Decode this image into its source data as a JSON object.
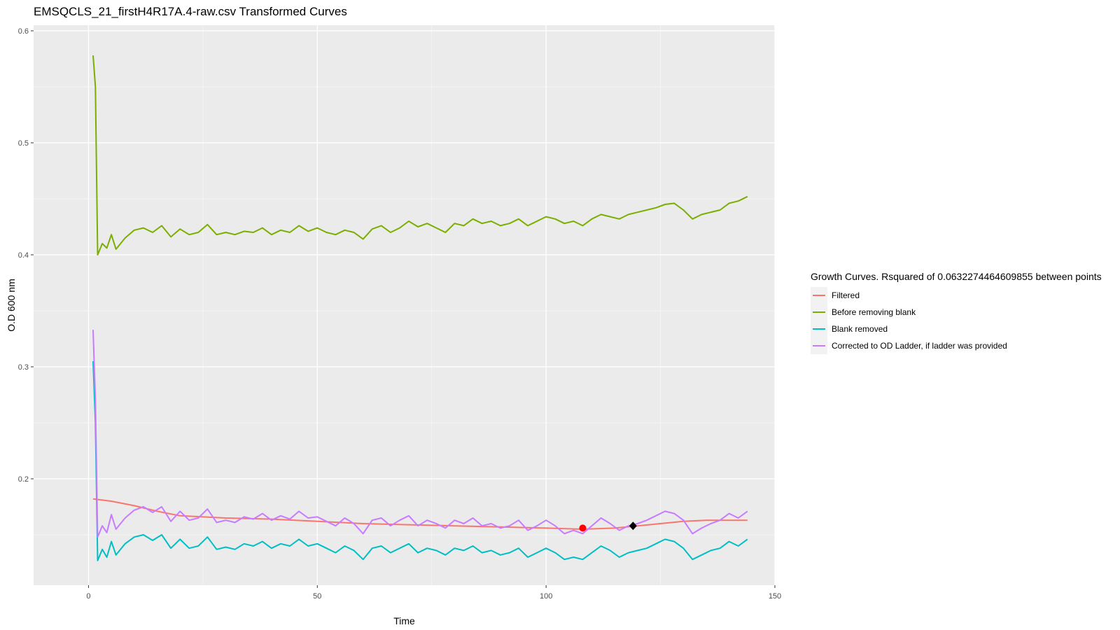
{
  "chart_data": {
    "type": "line",
    "title": "EMSQCLS_21_firstH4R17A.4-raw.csv Transformed Curves",
    "xlabel": "Time",
    "ylabel": "O.D 600 nm",
    "xlim": [
      -12,
      150
    ],
    "ylim": [
      0.105,
      0.605
    ],
    "x_ticks": [
      0,
      50,
      100,
      150
    ],
    "y_ticks": [
      0.2,
      0.3,
      0.4,
      0.5,
      0.6
    ],
    "x_tick_labels": [
      "0",
      "50",
      "100",
      "150"
    ],
    "y_tick_labels": [
      "0.2",
      "0.3",
      "0.4",
      "0.5",
      "0.6"
    ],
    "grid": true,
    "panel_background": "#ebebeb",
    "legend": {
      "title": "Growth Curves. Rsquared of 0.0632274464609855 between points",
      "placement": "right"
    },
    "series": [
      {
        "name": "Filtered",
        "color": "#f8766d",
        "x": [
          1,
          5,
          10,
          15,
          20,
          25,
          30,
          40,
          50,
          60,
          70,
          80,
          90,
          100,
          108,
          115,
          120,
          125,
          130,
          135,
          140,
          144
        ],
        "values": [
          0.182,
          0.18,
          0.176,
          0.171,
          0.167,
          0.166,
          0.165,
          0.164,
          0.162,
          0.16,
          0.159,
          0.158,
          0.157,
          0.156,
          0.155,
          0.156,
          0.158,
          0.16,
          0.162,
          0.163,
          0.163,
          0.163
        ]
      },
      {
        "name": "Before removing blank",
        "color": "#7cae00",
        "x": [
          1,
          1.5,
          2,
          3,
          4,
          5,
          6,
          8,
          10,
          12,
          14,
          16,
          18,
          20,
          22,
          24,
          26,
          28,
          30,
          32,
          34,
          36,
          38,
          40,
          42,
          44,
          46,
          48,
          50,
          52,
          54,
          56,
          58,
          60,
          62,
          64,
          66,
          68,
          70,
          72,
          74,
          76,
          78,
          80,
          82,
          84,
          86,
          88,
          90,
          92,
          94,
          96,
          98,
          100,
          102,
          104,
          106,
          108,
          110,
          112,
          114,
          116,
          118,
          120,
          122,
          124,
          126,
          128,
          130,
          132,
          134,
          136,
          138,
          140,
          142,
          144
        ],
        "values": [
          0.578,
          0.55,
          0.4,
          0.41,
          0.406,
          0.418,
          0.405,
          0.415,
          0.422,
          0.424,
          0.42,
          0.426,
          0.416,
          0.423,
          0.418,
          0.42,
          0.427,
          0.418,
          0.42,
          0.418,
          0.421,
          0.42,
          0.424,
          0.418,
          0.422,
          0.42,
          0.426,
          0.421,
          0.424,
          0.42,
          0.418,
          0.422,
          0.42,
          0.414,
          0.423,
          0.426,
          0.42,
          0.424,
          0.43,
          0.425,
          0.428,
          0.424,
          0.42,
          0.428,
          0.426,
          0.432,
          0.428,
          0.43,
          0.426,
          0.428,
          0.432,
          0.426,
          0.43,
          0.434,
          0.432,
          0.428,
          0.43,
          0.426,
          0.432,
          0.436,
          0.434,
          0.432,
          0.436,
          0.438,
          0.44,
          0.442,
          0.445,
          0.446,
          0.44,
          0.432,
          0.436,
          0.438,
          0.44,
          0.446,
          0.448,
          0.452
        ]
      },
      {
        "name": "Blank removed",
        "color": "#00bfc4",
        "x": [
          1,
          1.5,
          2,
          3,
          4,
          5,
          6,
          8,
          10,
          12,
          14,
          16,
          18,
          20,
          22,
          24,
          26,
          28,
          30,
          32,
          34,
          36,
          38,
          40,
          42,
          44,
          46,
          48,
          50,
          52,
          54,
          56,
          58,
          60,
          62,
          64,
          66,
          68,
          70,
          72,
          74,
          76,
          78,
          80,
          82,
          84,
          86,
          88,
          90,
          92,
          94,
          96,
          98,
          100,
          102,
          104,
          106,
          108,
          110,
          112,
          114,
          116,
          118,
          120,
          122,
          124,
          126,
          128,
          130,
          132,
          134,
          136,
          138,
          140,
          142,
          144
        ],
        "values": [
          0.305,
          0.25,
          0.127,
          0.137,
          0.13,
          0.144,
          0.132,
          0.142,
          0.148,
          0.15,
          0.145,
          0.15,
          0.138,
          0.146,
          0.138,
          0.14,
          0.148,
          0.137,
          0.139,
          0.137,
          0.142,
          0.14,
          0.144,
          0.138,
          0.142,
          0.14,
          0.146,
          0.14,
          0.142,
          0.138,
          0.134,
          0.14,
          0.136,
          0.128,
          0.138,
          0.14,
          0.134,
          0.138,
          0.142,
          0.134,
          0.138,
          0.136,
          0.132,
          0.138,
          0.136,
          0.14,
          0.134,
          0.136,
          0.132,
          0.134,
          0.138,
          0.13,
          0.134,
          0.138,
          0.134,
          0.128,
          0.13,
          0.128,
          0.134,
          0.14,
          0.136,
          0.13,
          0.134,
          0.136,
          0.138,
          0.142,
          0.146,
          0.144,
          0.138,
          0.128,
          0.132,
          0.136,
          0.138,
          0.144,
          0.14,
          0.146
        ]
      },
      {
        "name": "Corrected to OD Ladder, if ladder was provided",
        "color": "#c77cff",
        "x": [
          1,
          1.5,
          2,
          3,
          4,
          5,
          6,
          8,
          10,
          12,
          14,
          16,
          18,
          20,
          22,
          24,
          26,
          28,
          30,
          32,
          34,
          36,
          38,
          40,
          42,
          44,
          46,
          48,
          50,
          52,
          54,
          56,
          58,
          60,
          62,
          64,
          66,
          68,
          70,
          72,
          74,
          76,
          78,
          80,
          82,
          84,
          86,
          88,
          90,
          92,
          94,
          96,
          98,
          100,
          102,
          104,
          106,
          108,
          110,
          112,
          114,
          116,
          118,
          120,
          122,
          124,
          126,
          128,
          130,
          132,
          134,
          136,
          138,
          140,
          142,
          144
        ],
        "values": [
          0.333,
          0.27,
          0.148,
          0.158,
          0.152,
          0.168,
          0.155,
          0.165,
          0.172,
          0.175,
          0.17,
          0.175,
          0.162,
          0.171,
          0.163,
          0.165,
          0.173,
          0.161,
          0.163,
          0.161,
          0.166,
          0.164,
          0.169,
          0.163,
          0.167,
          0.164,
          0.171,
          0.165,
          0.166,
          0.162,
          0.158,
          0.165,
          0.16,
          0.151,
          0.163,
          0.165,
          0.158,
          0.163,
          0.167,
          0.158,
          0.163,
          0.16,
          0.156,
          0.163,
          0.16,
          0.165,
          0.158,
          0.16,
          0.156,
          0.158,
          0.163,
          0.154,
          0.158,
          0.163,
          0.158,
          0.151,
          0.154,
          0.151,
          0.158,
          0.165,
          0.16,
          0.154,
          0.158,
          0.16,
          0.163,
          0.167,
          0.171,
          0.169,
          0.163,
          0.151,
          0.156,
          0.16,
          0.163,
          0.169,
          0.165,
          0.171
        ]
      }
    ],
    "markers": [
      {
        "x": 108,
        "y": 0.156,
        "color": "#ff0000",
        "shape": "circle"
      },
      {
        "x": 119,
        "y": 0.158,
        "color": "#000000",
        "shape": "diamond"
      }
    ]
  }
}
